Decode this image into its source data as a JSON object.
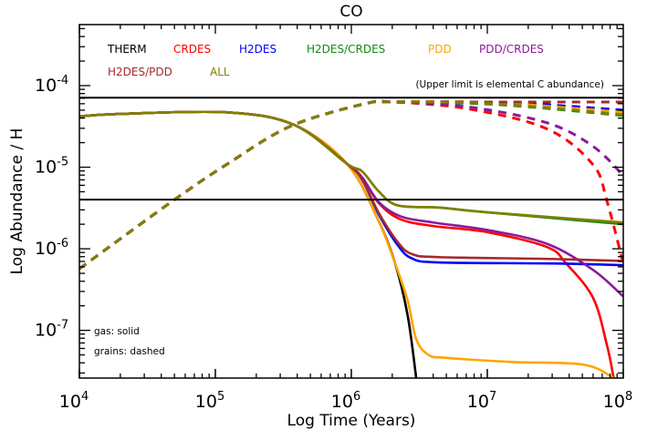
{
  "chart_data": {
    "type": "line",
    "title": "CO",
    "xlabel": "Log Time (Years)",
    "ylabel": "Log Abundance / H",
    "xscale": "log",
    "yscale": "log",
    "xlim": [
      10000.0,
      100000000.0
    ],
    "ylim": [
      2.6e-08,
      0.00056
    ],
    "xticks": [
      10000.0,
      100000.0,
      1000000.0,
      10000000.0,
      100000000.0
    ],
    "xtick_labels": [
      {
        "base": "10",
        "exp": "4"
      },
      {
        "base": "10",
        "exp": "5"
      },
      {
        "base": "10",
        "exp": "6"
      },
      {
        "base": "10",
        "exp": "7"
      },
      {
        "base": "10",
        "exp": "8"
      }
    ],
    "yticks": [
      1e-07,
      1e-06,
      1e-05,
      0.0001
    ],
    "ytick_labels": [
      {
        "base": "10",
        "exp": "-7"
      },
      {
        "base": "10",
        "exp": "-6"
      },
      {
        "base": "10",
        "exp": "-5"
      },
      {
        "base": "10",
        "exp": "-4"
      }
    ],
    "grid": false,
    "legend_placement": "top-left",
    "note": "(Upper limit is elemental C abundance)",
    "style_note": {
      "gas": "gas: solid",
      "grains": "grains: dashed"
    },
    "reference_lines": [
      7.1e-05,
      4e-06
    ],
    "series": [
      {
        "name": "THERM",
        "color": "#000000",
        "gas": [
          [
            10000.0,
            4.2e-05
          ],
          [
            20000.0,
            4.5e-05
          ],
          [
            123000.0,
            4.7e-05
          ],
          [
            380000.0,
            3.3e-05
          ],
          [
            930000.0,
            1.1e-05
          ],
          [
            1550000.0,
            2.4e-06
          ],
          [
            2100000.0,
            6.6e-07
          ],
          [
            2600000.0,
            1.5e-07
          ],
          [
            3000000.0,
            2.6e-08
          ]
        ],
        "grains": [
          [
            10000.0,
            5.7e-07
          ],
          [
            49000.0,
            3.9e-06
          ],
          [
            123000.0,
            1.1e-05
          ],
          [
            360000.0,
            3.2e-05
          ],
          [
            1260000.0,
            6e-05
          ],
          [
            2000000.0,
            6.3e-05
          ],
          [
            7000000.0,
            6.3e-05
          ],
          [
            20000000.0,
            6e-05
          ],
          [
            100000000.0,
            5e-05
          ]
        ]
      },
      {
        "name": "CRDES",
        "color": "#ff0000",
        "gas": [
          [
            10000.0,
            4.2e-05
          ],
          [
            20000.0,
            4.5e-05
          ],
          [
            123000.0,
            4.7e-05
          ],
          [
            380000.0,
            3.3e-05
          ],
          [
            930000.0,
            1.1e-05
          ],
          [
            1200000.0,
            7.5e-06
          ],
          [
            1600000.0,
            3.6e-06
          ],
          [
            2300000.0,
            2.3e-06
          ],
          [
            4000000.0,
            1.9e-06
          ],
          [
            10000000.0,
            1.6e-06
          ],
          [
            27500000.0,
            1.05e-06
          ],
          [
            38000000.0,
            6.6e-07
          ],
          [
            60000000.0,
            2.5e-07
          ],
          [
            76000000.0,
            6.5e-08
          ],
          [
            85000000.0,
            2.6e-08
          ]
        ],
        "grains": [
          [
            10000.0,
            5.7e-07
          ],
          [
            49000.0,
            3.9e-06
          ],
          [
            123000.0,
            1.1e-05
          ],
          [
            360000.0,
            3.2e-05
          ],
          [
            1260000.0,
            6e-05
          ],
          [
            2000000.0,
            6.3e-05
          ],
          [
            7200000.0,
            5.2e-05
          ],
          [
            27500000.0,
            2.95e-05
          ],
          [
            60000000.0,
            1.07e-05
          ],
          [
            76000000.0,
            3.8e-06
          ],
          [
            100000000.0,
            6.6e-07
          ]
        ]
      },
      {
        "name": "H2DES",
        "color": "#0000ff",
        "gas": [
          [
            10000.0,
            4.2e-05
          ],
          [
            20000.0,
            4.5e-05
          ],
          [
            123000.0,
            4.7e-05
          ],
          [
            380000.0,
            3.3e-05
          ],
          [
            930000.0,
            1.1e-05
          ],
          [
            1200000.0,
            7e-06
          ],
          [
            1600000.0,
            2.6e-06
          ],
          [
            2200000.0,
            1.1e-06
          ],
          [
            2800000.0,
            7.6e-07
          ],
          [
            4400000.0,
            6.8e-07
          ],
          [
            30000000.0,
            6.6e-07
          ],
          [
            100000000.0,
            6.3e-07
          ]
        ],
        "grains": [
          [
            10000.0,
            5.7e-07
          ],
          [
            49000.0,
            3.9e-06
          ],
          [
            123000.0,
            1.1e-05
          ],
          [
            360000.0,
            3.2e-05
          ],
          [
            1260000.0,
            6e-05
          ],
          [
            2000000.0,
            6.3e-05
          ],
          [
            7000000.0,
            6.3e-05
          ],
          [
            20000000.0,
            6e-05
          ],
          [
            100000000.0,
            5e-05
          ]
        ]
      },
      {
        "name": "H2DES/CRDES",
        "color": "#138a13",
        "gas": [
          [
            10000.0,
            4.2e-05
          ],
          [
            20000.0,
            4.5e-05
          ],
          [
            123000.0,
            4.7e-05
          ],
          [
            380000.0,
            3.3e-05
          ],
          [
            930000.0,
            1.1e-05
          ],
          [
            1200000.0,
            8.9e-06
          ],
          [
            1600000.0,
            5e-06
          ],
          [
            2200000.0,
            3.4e-06
          ],
          [
            4400000.0,
            3.2e-06
          ],
          [
            10000000.0,
            2.8e-06
          ],
          [
            100000000.0,
            2e-06
          ]
        ],
        "grains": [
          [
            10000.0,
            5.7e-07
          ],
          [
            49000.0,
            3.9e-06
          ],
          [
            123000.0,
            1.1e-05
          ],
          [
            360000.0,
            3.2e-05
          ],
          [
            1260000.0,
            6e-05
          ],
          [
            2000000.0,
            6.3e-05
          ],
          [
            7000000.0,
            6.1e-05
          ],
          [
            20000000.0,
            5.5e-05
          ],
          [
            100000000.0,
            4.3e-05
          ]
        ]
      },
      {
        "name": "PDD",
        "color": "#ffa500",
        "gas": [
          [
            10000.0,
            4.2e-05
          ],
          [
            20000.0,
            4.5e-05
          ],
          [
            123000.0,
            4.7e-05
          ],
          [
            380000.0,
            3.3e-05
          ],
          [
            930000.0,
            1.1e-05
          ],
          [
            1550000.0,
            2.4e-06
          ],
          [
            2100000.0,
            6.6e-07
          ],
          [
            2600000.0,
            2.3e-07
          ],
          [
            3000000.0,
            7.8e-08
          ],
          [
            3700000.0,
            5e-08
          ],
          [
            5000000.0,
            4.6e-08
          ],
          [
            15000000.0,
            4.1e-08
          ],
          [
            51000000.0,
            3.8e-08
          ],
          [
            85000000.0,
            2.6e-08
          ]
        ],
        "grains": [
          [
            10000.0,
            5.7e-07
          ],
          [
            49000.0,
            3.9e-06
          ],
          [
            123000.0,
            1.1e-05
          ],
          [
            360000.0,
            3.2e-05
          ],
          [
            1260000.0,
            6e-05
          ],
          [
            2000000.0,
            6.3e-05
          ],
          [
            7000000.0,
            6.3e-05
          ],
          [
            20000000.0,
            5.8e-05
          ],
          [
            100000000.0,
            4.7e-05
          ]
        ]
      },
      {
        "name": "PDD/CRDES",
        "color": "#8b1a9b",
        "gas": [
          [
            10000.0,
            4.2e-05
          ],
          [
            20000.0,
            4.5e-05
          ],
          [
            123000.0,
            4.7e-05
          ],
          [
            380000.0,
            3.3e-05
          ],
          [
            930000.0,
            1.1e-05
          ],
          [
            1200000.0,
            7.5e-06
          ],
          [
            1600000.0,
            3.7e-06
          ],
          [
            2300000.0,
            2.5e-06
          ],
          [
            4000000.0,
            2.1e-06
          ],
          [
            10000000.0,
            1.7e-06
          ],
          [
            27500000.0,
            1.15e-06
          ],
          [
            60000000.0,
            5.5e-07
          ],
          [
            100000000.0,
            2.6e-07
          ]
        ],
        "grains": [
          [
            10000.0,
            5.7e-07
          ],
          [
            49000.0,
            3.9e-06
          ],
          [
            123000.0,
            1.1e-05
          ],
          [
            360000.0,
            3.2e-05
          ],
          [
            1260000.0,
            6e-05
          ],
          [
            2000000.0,
            6.3e-05
          ],
          [
            7200000.0,
            5.5e-05
          ],
          [
            27500000.0,
            3.5e-05
          ],
          [
            60000000.0,
            1.8e-05
          ],
          [
            100000000.0,
            7.9e-06
          ]
        ]
      },
      {
        "name": "H2DES/PDD",
        "color": "#a52a2a",
        "gas": [
          [
            10000.0,
            4.2e-05
          ],
          [
            20000.0,
            4.5e-05
          ],
          [
            123000.0,
            4.7e-05
          ],
          [
            380000.0,
            3.3e-05
          ],
          [
            930000.0,
            1.1e-05
          ],
          [
            1200000.0,
            7e-06
          ],
          [
            1600000.0,
            2.7e-06
          ],
          [
            2200000.0,
            1.2e-06
          ],
          [
            2800000.0,
            8.6e-07
          ],
          [
            4400000.0,
            7.9e-07
          ],
          [
            30000000.0,
            7.5e-07
          ],
          [
            100000000.0,
            7.1e-07
          ]
        ],
        "grains": [
          [
            10000.0,
            5.7e-07
          ],
          [
            49000.0,
            3.9e-06
          ],
          [
            123000.0,
            1.1e-05
          ],
          [
            360000.0,
            3.2e-05
          ],
          [
            1260000.0,
            6e-05
          ],
          [
            2000000.0,
            6.3e-05
          ],
          [
            7000000.0,
            6.3e-05
          ],
          [
            20000000.0,
            6.3e-05
          ],
          [
            100000000.0,
            6.3e-05
          ]
        ]
      },
      {
        "name": "ALL",
        "color": "#808000",
        "gas": [
          [
            10000.0,
            4.2e-05
          ],
          [
            20000.0,
            4.5e-05
          ],
          [
            123000.0,
            4.7e-05
          ],
          [
            380000.0,
            3.3e-05
          ],
          [
            930000.0,
            1.1e-05
          ],
          [
            1200000.0,
            8.9e-06
          ],
          [
            1600000.0,
            5e-06
          ],
          [
            2200000.0,
            3.4e-06
          ],
          [
            4400000.0,
            3.2e-06
          ],
          [
            10000000.0,
            2.8e-06
          ],
          [
            100000000.0,
            2.1e-06
          ]
        ],
        "grains": [
          [
            10000.0,
            5.7e-07
          ],
          [
            49000.0,
            3.9e-06
          ],
          [
            123000.0,
            1.1e-05
          ],
          [
            360000.0,
            3.2e-05
          ],
          [
            1260000.0,
            6e-05
          ],
          [
            2000000.0,
            6.3e-05
          ],
          [
            7000000.0,
            6.2e-05
          ],
          [
            20000000.0,
            5.6e-05
          ],
          [
            100000000.0,
            4.4e-05
          ]
        ]
      }
    ]
  }
}
